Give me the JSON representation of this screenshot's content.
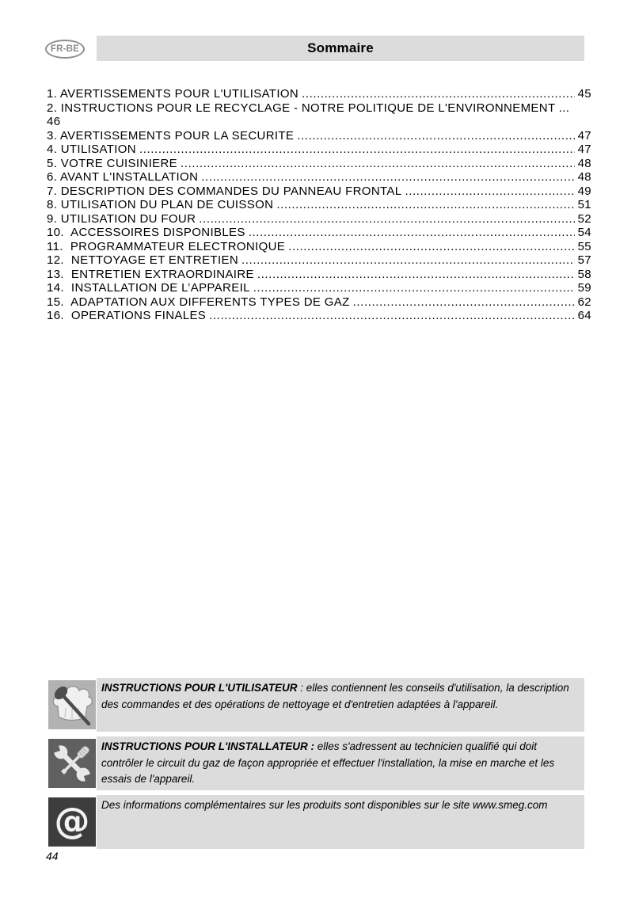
{
  "page": {
    "lang_badge": "FR-BE",
    "title": "Sommaire",
    "page_number": "44"
  },
  "toc": {
    "entries": [
      {
        "label": "1. AVERTISSEMENTS POUR L'UTILISATION",
        "page": "45"
      },
      {
        "label": "2. INSTRUCTIONS POUR LE RECYCLAGE - NOTRE POLITIQUE DE L'ENVIRONNEMENT",
        "page": "46",
        "wrapped": true
      },
      {
        "label": "3. AVERTISSEMENTS POUR LA SECURITE",
        "page": "47"
      },
      {
        "label": "4. UTILISATION",
        "page": "47"
      },
      {
        "label": "5. VOTRE CUISINIERE",
        "page": "48"
      },
      {
        "label": "6. AVANT L'INSTALLATION",
        "page": "48"
      },
      {
        "label": "7. DESCRIPTION DES COMMANDES DU PANNEAU FRONTAL",
        "page": "49"
      },
      {
        "label": "8. UTILISATION DU PLAN DE CUISSON",
        "page": "51"
      },
      {
        "label": "9. UTILISATION DU FOUR",
        "page": "52"
      },
      {
        "label": "10.  ACCESSOIRES DISPONIBLES",
        "page": "54"
      },
      {
        "label": "11.  PROGRAMMATEUR ELECTRONIQUE",
        "page": "55"
      },
      {
        "label": "12.  NETTOYAGE ET ENTRETIEN",
        "page": "57"
      },
      {
        "label": "13.  ENTRETIEN EXTRAORDINAIRE",
        "page": "58"
      },
      {
        "label": "14.  INSTALLATION DE L’APPAREIL",
        "page": "59"
      },
      {
        "label": "15.  ADAPTATION AUX DIFFERENTS TYPES DE GAZ",
        "page": "62"
      },
      {
        "label": "16.  OPERATIONS FINALES",
        "page": "64"
      }
    ]
  },
  "notes": [
    {
      "icon": "chef-hat-spoon-icon",
      "lead": "INSTRUCTIONS POUR L'UTILISATEUR",
      "text": " : elles contiennent les conseils d'utilisation, la description des commandes et des opérations de nettoyage et d'entretien adaptées à l'appareil."
    },
    {
      "icon": "wrench-screwdriver-icon",
      "lead": "INSTRUCTIONS POUR L'INSTALLATEUR :",
      "text": " elles s'adressent au technicien qualifié qui doit contrôler le circuit du gaz de façon appropriée et effectuer l'installation, la mise en marche et les essais de l'appareil."
    },
    {
      "icon": "at-symbol-icon",
      "lead": "",
      "text": "Des informations complémentaires sur les produits sont disponibles sur le site www.smeg.com"
    }
  ],
  "icons": {
    "at_symbol": "@"
  },
  "colors": {
    "header_bar_bg": "#dcdcdc",
    "note_box_bg": "#dcdcdc",
    "icon_user_bg": "#b2b2b2",
    "icon_installer_bg": "#606060",
    "icon_web_bg": "#3d3d3d",
    "badge_border": "#8f8f8f",
    "badge_text": "#8a8a8a"
  }
}
